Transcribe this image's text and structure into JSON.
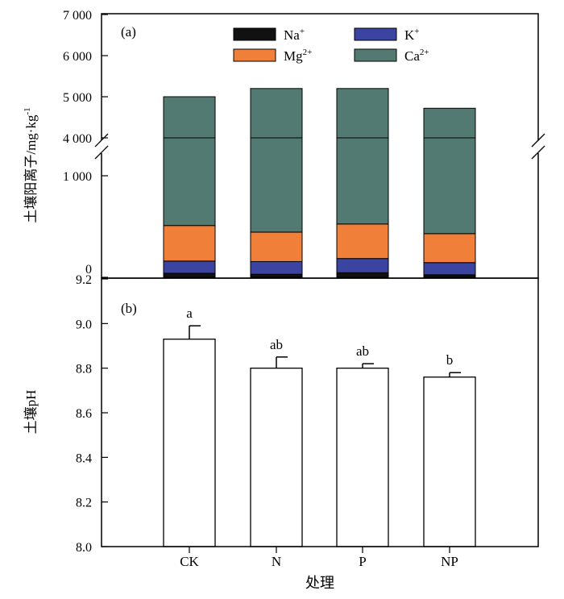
{
  "chart_data": [
    {
      "panel_label": "(a)",
      "type": "bar",
      "stacked": true,
      "axis_break": [
        1500,
        4000
      ],
      "categories": [
        "CK",
        "N",
        "P",
        "NP"
      ],
      "ylabel": "土壤阳离子/mg·kg",
      "ylabel_sup": "-1",
      "yticks_lower": [
        "0",
        "1 000"
      ],
      "yticks_upper": [
        "4 000",
        "5 000",
        "6 000",
        "7 000"
      ],
      "ylim": [
        0,
        7000
      ],
      "series": [
        {
          "name": "Na",
          "sup": "+",
          "color": "#111111",
          "values": [
            40,
            30,
            45,
            25
          ]
        },
        {
          "name": "K",
          "sup": "+",
          "color": "#3b44a0",
          "values": [
            120,
            125,
            140,
            120
          ]
        },
        {
          "name": "Mg",
          "sup": "2+",
          "color": "#f07f3a",
          "values": [
            350,
            290,
            340,
            285
          ]
        },
        {
          "name": "Ca",
          "sup": "2+",
          "color": "#527a72",
          "values": [
            4490,
            4755,
            4675,
            4290
          ]
        }
      ],
      "totals": [
        5000,
        5200,
        5200,
        4720
      ]
    },
    {
      "panel_label": "(b)",
      "type": "bar",
      "categories": [
        "CK",
        "N",
        "P",
        "NP"
      ],
      "values": [
        8.93,
        8.8,
        8.8,
        8.76
      ],
      "errors": [
        0.06,
        0.05,
        0.02,
        0.02
      ],
      "letters": [
        "a",
        "ab",
        "ab",
        "b"
      ],
      "ylabel": "土壤pH",
      "xlabel": "处理",
      "ylim": [
        8.0,
        9.2
      ],
      "yticks": [
        "8.0",
        "8.2",
        "8.4",
        "8.6",
        "8.8",
        "9.0",
        "9.2"
      ]
    }
  ]
}
